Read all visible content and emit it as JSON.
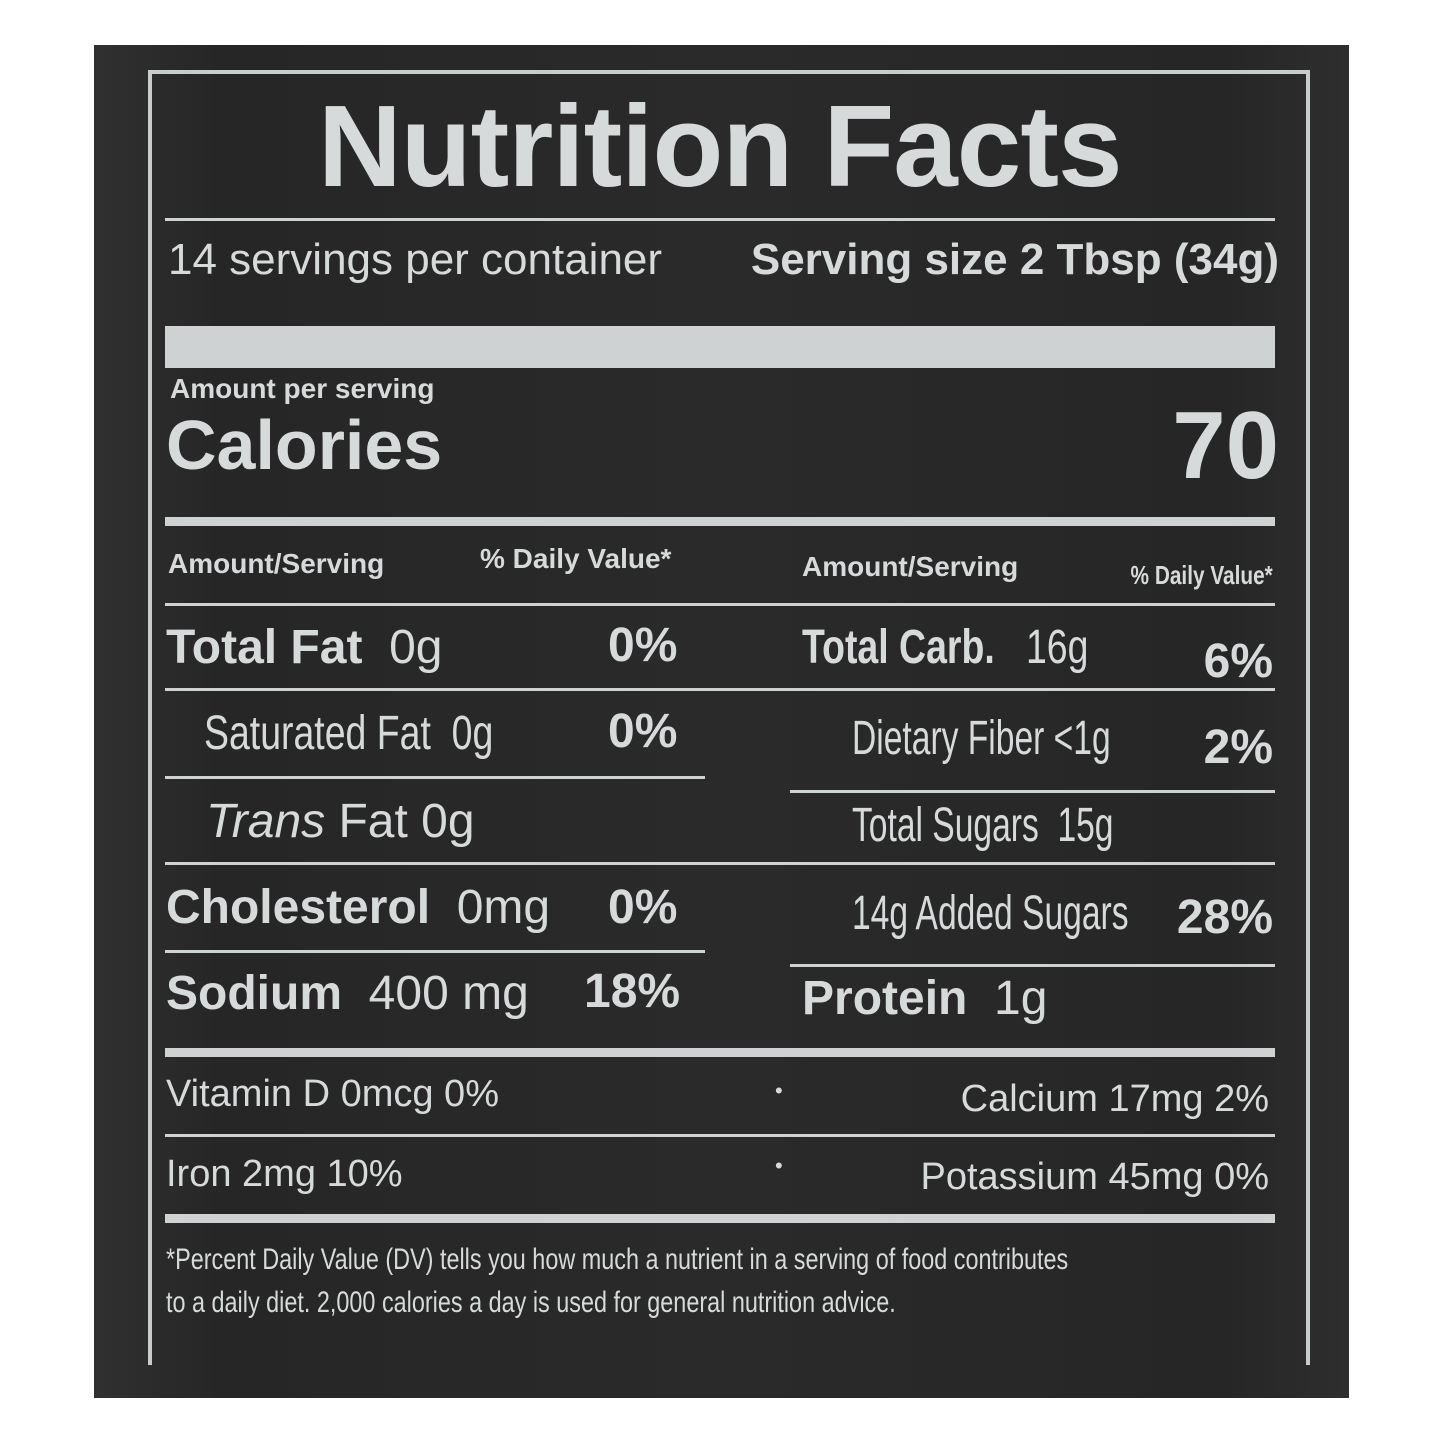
{
  "title": "Nutrition Facts",
  "servings": "14 servings per container",
  "serving_size": "Serving size 2 Tbsp (34g)",
  "amount_per_serving": "Amount per serving",
  "calories_label": "Calories",
  "calories_value": "70",
  "headers": {
    "amount": "Amount/Serving",
    "dv": "% Daily Value*"
  },
  "left": [
    {
      "name": "Total Fat",
      "amount": "0g",
      "dv": "0%"
    },
    {
      "name": "Saturated Fat",
      "amount": "0g",
      "dv": "0%"
    },
    {
      "name": "Trans",
      "name2": "Fat 0g"
    },
    {
      "name": "Cholesterol",
      "amount": "0mg",
      "dv": "0%"
    },
    {
      "name": "Sodium",
      "amount": "400 mg",
      "dv": "18%"
    }
  ],
  "right": [
    {
      "name": "Total Carb.",
      "amount": "16g",
      "dv": "6%"
    },
    {
      "name": "Dietary Fiber",
      "amount": "<1g",
      "dv": "2%"
    },
    {
      "name": "Total Sugars",
      "amount": "15g"
    },
    {
      "name": "14g Added Sugars",
      "dv": "28%"
    },
    {
      "name": "Protein",
      "amount": "1g"
    }
  ],
  "vitamins": [
    {
      "left": "Vitamin D  0mcg 0%",
      "sep": "•",
      "right": "Calcium 17mg  2%"
    },
    {
      "left": "Iron 2mg 10%",
      "sep": "•",
      "right": "Potassium 45mg  0%"
    }
  ],
  "footnote": [
    "*Percent Daily Value (DV) tells you how much a nutrient in a serving of food contributes",
    "to a daily diet. 2,000 calories a day is used for general nutrition advice."
  ]
}
